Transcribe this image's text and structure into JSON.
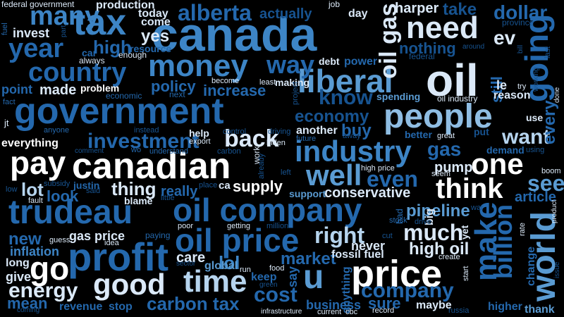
{
  "cloud": {
    "palette": [
      "#ffffff",
      "#dbe9f8",
      "#b6d4ee",
      "#8fbde3",
      "#5a9bd2",
      "#3d85c6",
      "#2468ad",
      "#175390",
      "#0f3e73",
      "#0b2d57"
    ],
    "words": [
      {
        "text": "canada",
        "color": "#3d85c6"
      },
      {
        "text": "government",
        "color": "#2468ad"
      },
      {
        "text": "canadian",
        "color": "#ffffff"
      },
      {
        "text": "oil company",
        "color": "#2468ad"
      },
      {
        "text": "trudeau",
        "color": "#2468ad"
      },
      {
        "text": "price",
        "color": "#ffffff"
      },
      {
        "text": "oil",
        "color": "#dbe9f8"
      },
      {
        "text": "people",
        "color": "#8fbde3"
      },
      {
        "text": "profit",
        "color": "#2468ad"
      },
      {
        "text": "tax",
        "color": "#3d85c6"
      },
      {
        "text": "oil price",
        "color": "#2468ad"
      },
      {
        "text": "money",
        "color": "#3d85c6"
      },
      {
        "text": "industry",
        "color": "#3d85c6"
      },
      {
        "text": "time",
        "color": "#b6d4ee"
      },
      {
        "text": "good",
        "color": "#dbe9f8"
      },
      {
        "text": "liberal",
        "color": "#5a9bd2"
      },
      {
        "text": "need",
        "color": "#dbe9f8"
      },
      {
        "text": "going",
        "color": "#2468ad"
      },
      {
        "text": "world",
        "color": "#5a9bd2"
      },
      {
        "text": "make",
        "color": "#2468ad"
      },
      {
        "text": "think",
        "color": "#ffffff"
      },
      {
        "text": "one",
        "color": "#ffffff"
      },
      {
        "text": "pay",
        "color": "#ffffff"
      },
      {
        "text": "go",
        "color": "#ffffff"
      },
      {
        "text": "u",
        "color": "#5a9bd2"
      },
      {
        "text": "well",
        "color": "#5a9bd2"
      },
      {
        "text": "year",
        "color": "#2468ad"
      },
      {
        "text": "country",
        "color": "#2468ad"
      },
      {
        "text": "back",
        "color": "#dbe9f8"
      },
      {
        "text": "billion",
        "color": "#2468ad"
      },
      {
        "text": "alberta",
        "color": "#2468ad"
      },
      {
        "text": "many",
        "color": "#3d85c6"
      },
      {
        "text": "investment",
        "color": "#2468ad"
      },
      {
        "text": "way",
        "color": "#2468ad"
      },
      {
        "text": "oil gas",
        "color": "#dbe9f8"
      },
      {
        "text": "know",
        "color": "#175390"
      },
      {
        "text": "carbon tax",
        "color": "#2468ad"
      },
      {
        "text": "energy",
        "color": "#dbe9f8"
      },
      {
        "text": "company",
        "color": "#2468ad"
      },
      {
        "text": "cost",
        "color": "#2468ad"
      },
      {
        "text": "much",
        "color": "#dbe9f8"
      },
      {
        "text": "right",
        "color": "#b6d4ee"
      },
      {
        "text": "even",
        "color": "#2468ad"
      },
      {
        "text": "want",
        "color": "#b6d4ee"
      },
      {
        "text": "see",
        "color": "#5a9bd2"
      },
      {
        "text": "dollar",
        "color": "#2468ad"
      },
      {
        "text": "take",
        "color": "#175390"
      },
      {
        "text": "ev",
        "color": "#dbe9f8"
      },
      {
        "text": "every",
        "color": "#2468ad"
      },
      {
        "text": "gas",
        "color": "#2468ad"
      },
      {
        "text": "lot",
        "color": "#b6d4ee"
      },
      {
        "text": "thing",
        "color": "#dbe9f8"
      },
      {
        "text": "supply",
        "color": "#ffffff"
      },
      {
        "text": "lol",
        "color": "#3d85c6"
      },
      {
        "text": "market",
        "color": "#2468ad"
      },
      {
        "text": "high oil",
        "color": "#dbe9f8"
      },
      {
        "text": "pipeline",
        "color": "#5a9bd2"
      },
      {
        "text": "conservative",
        "color": "#dbe9f8"
      },
      {
        "text": "economy",
        "color": "#175390"
      },
      {
        "text": "buy",
        "color": "#2468ad"
      },
      {
        "text": "policy",
        "color": "#2468ad"
      },
      {
        "text": "increase",
        "color": "#2468ad"
      },
      {
        "text": "new",
        "color": "#2468ad"
      },
      {
        "text": "look",
        "color": "#2468ad"
      },
      {
        "text": "really",
        "color": "#2468ad"
      },
      {
        "text": "high",
        "color": "#2468ad"
      },
      {
        "text": "still",
        "color": "#2468ad"
      },
      {
        "text": "business",
        "color": "#2468ad"
      },
      {
        "text": "stop",
        "color": "#2468ad"
      },
      {
        "text": "sure",
        "color": "#2468ad"
      },
      {
        "text": "yes",
        "color": "#dbe9f8"
      },
      {
        "text": "invest",
        "color": "#dbe9f8"
      },
      {
        "text": "made",
        "color": "#dbe9f8"
      },
      {
        "text": "point",
        "color": "#2468ad"
      },
      {
        "text": "actually",
        "color": "#175390"
      },
      {
        "text": "nothing",
        "color": "#175390"
      },
      {
        "text": "harper",
        "color": "#dbe9f8"
      },
      {
        "text": "everything",
        "color": "#ffffff"
      },
      {
        "text": "gas price",
        "color": "#dbe9f8"
      },
      {
        "text": "inflation",
        "color": "#3d85c6"
      },
      {
        "text": "article",
        "color": "#2468ad"
      },
      {
        "text": "pump",
        "color": "#dbe9f8"
      },
      {
        "text": "give",
        "color": "#dbe9f8"
      },
      {
        "text": "mean",
        "color": "#2468ad"
      },
      {
        "text": "revenue",
        "color": "#2468ad"
      },
      {
        "text": "care",
        "color": "#dbe9f8"
      },
      {
        "text": "global",
        "color": "#5a9bd2"
      },
      {
        "text": "fossil fuel",
        "color": "#dbe9f8"
      },
      {
        "text": "never",
        "color": "#dbe9f8"
      },
      {
        "text": "maybe",
        "color": "#dbe9f8"
      },
      {
        "text": "higher",
        "color": "#2468ad"
      },
      {
        "text": "thank",
        "color": "#5a9bd2"
      },
      {
        "text": "change",
        "color": "#2468ad"
      },
      {
        "text": "anything",
        "color": "#2468ad"
      },
      {
        "text": "say",
        "color": "#2468ad"
      },
      {
        "text": "keep",
        "color": "#2468ad"
      },
      {
        "text": "long",
        "color": "#dbe9f8"
      },
      {
        "text": "production",
        "color": "#dbe9f8"
      },
      {
        "text": "today",
        "color": "#dbe9f8"
      },
      {
        "text": "come",
        "color": "#dbe9f8"
      },
      {
        "text": "day",
        "color": "#dbe9f8"
      },
      {
        "text": "power",
        "color": "#2468ad"
      },
      {
        "text": "debt",
        "color": "#dbe9f8"
      },
      {
        "text": "le",
        "color": "#dbe9f8"
      },
      {
        "text": "reason",
        "color": "#dbe9f8"
      },
      {
        "text": "spending",
        "color": "#5a9bd2"
      },
      {
        "text": "making",
        "color": "#dbe9f8"
      },
      {
        "text": "problem",
        "color": "#ffffff"
      },
      {
        "text": "resource",
        "color": "#2468ad"
      },
      {
        "text": "car",
        "color": "#2468ad"
      },
      {
        "text": "another",
        "color": "#dbe9f8"
      },
      {
        "text": "better",
        "color": "#2468ad"
      },
      {
        "text": "blame",
        "color": "#dbe9f8"
      },
      {
        "text": "justin",
        "color": "#2468ad"
      },
      {
        "text": "help",
        "color": "#dbe9f8"
      },
      {
        "text": "use",
        "color": "#dbe9f8"
      },
      {
        "text": "demand",
        "color": "#2468ad"
      },
      {
        "text": "put",
        "color": "#175390"
      },
      {
        "text": "big",
        "color": "#dbe9f8"
      },
      {
        "text": "yet",
        "color": "#dbe9f8"
      },
      {
        "text": "federal government",
        "color": "#dbe9f8"
      },
      {
        "text": "job",
        "color": "#dbe9f8"
      },
      {
        "text": "province",
        "color": "#175390"
      },
      {
        "text": "enough",
        "color": "#dbe9f8"
      },
      {
        "text": "always",
        "color": "#dbe9f8"
      },
      {
        "text": "federal",
        "color": "#175390"
      },
      {
        "text": "around",
        "color": "#175390"
      },
      {
        "text": "fuel",
        "color": "#2468ad"
      },
      {
        "text": "part",
        "color": "#175390"
      },
      {
        "text": "bill",
        "color": "#175390"
      },
      {
        "text": "last",
        "color": "#175390"
      },
      {
        "text": "working",
        "color": "#175390"
      },
      {
        "text": "economic",
        "color": "#2468ad"
      },
      {
        "text": "next",
        "color": "#2468ad"
      },
      {
        "text": "become",
        "color": "#dbe9f8"
      },
      {
        "text": "least",
        "color": "#dbe9f8"
      },
      {
        "text": "project",
        "color": "#175390"
      },
      {
        "text": "oil industry",
        "color": "#dbe9f8"
      },
      {
        "text": "try",
        "color": "#dbe9f8"
      },
      {
        "text": "done",
        "color": "#dbe9f8"
      },
      {
        "text": "fact",
        "color": "#2468ad"
      },
      {
        "text": "jt",
        "color": "#dbe9f8"
      },
      {
        "text": "anyone",
        "color": "#2468ad"
      },
      {
        "text": "instead",
        "color": "#175390"
      },
      {
        "text": "control",
        "color": "#175390"
      },
      {
        "text": "driving",
        "color": "#175390"
      },
      {
        "text": "away",
        "color": "#175390"
      },
      {
        "text": "future",
        "color": "#2468ad"
      },
      {
        "text": "great",
        "color": "#dbe9f8"
      },
      {
        "text": "comment",
        "color": "#175390"
      },
      {
        "text": "wo",
        "color": "#2468ad"
      },
      {
        "text": "understand",
        "color": "#2468ad"
      },
      {
        "text": "export",
        "color": "#dbe9f8"
      },
      {
        "text": "carbon",
        "color": "#175390"
      },
      {
        "text": "work",
        "color": "#dbe9f8"
      },
      {
        "text": "biden",
        "color": "#dbe9f8"
      },
      {
        "text": "already",
        "color": "#175390"
      },
      {
        "text": "left",
        "color": "#175390"
      },
      {
        "text": "high price",
        "color": "#dbe9f8"
      },
      {
        "text": "seem",
        "color": "#dbe9f8"
      },
      {
        "text": "using",
        "color": "#175390"
      },
      {
        "text": "boom",
        "color": "#dbe9f8"
      },
      {
        "text": "low",
        "color": "#175390"
      },
      {
        "text": "subsidy",
        "color": "#175390"
      },
      {
        "text": "said",
        "color": "#175390"
      },
      {
        "text": "place",
        "color": "#175390"
      },
      {
        "text": "ca",
        "color": "#dbe9f8"
      },
      {
        "text": "fault",
        "color": "#dbe9f8"
      },
      {
        "text": "little",
        "color": "#175390"
      },
      {
        "text": "support",
        "color": "#5a9bd2"
      },
      {
        "text": "war",
        "color": "#175390"
      },
      {
        "text": "rate",
        "color": "#dbe9f8"
      },
      {
        "text": "product",
        "color": "#dbe9f8"
      },
      {
        "text": "stock",
        "color": "#2468ad"
      },
      {
        "text": "drive",
        "color": "#175390"
      },
      {
        "text": "bad",
        "color": "#2468ad"
      },
      {
        "text": "poor",
        "color": "#dbe9f8"
      },
      {
        "text": "getting",
        "color": "#dbe9f8"
      },
      {
        "text": "million",
        "color": "#175390"
      },
      {
        "text": "paying",
        "color": "#2468ad"
      },
      {
        "text": "guess",
        "color": "#dbe9f8"
      },
      {
        "text": "idea",
        "color": "#dbe9f8"
      },
      {
        "text": "cut",
        "color": "#175390"
      },
      {
        "text": "create",
        "color": "#dbe9f8"
      },
      {
        "text": "start",
        "color": "#dbe9f8"
      },
      {
        "text": "sector",
        "color": "#175390"
      },
      {
        "text": "run",
        "color": "#dbe9f8"
      },
      {
        "text": "food",
        "color": "#dbe9f8"
      },
      {
        "text": "green",
        "color": "#175390"
      },
      {
        "text": "issue",
        "color": "#175390"
      },
      {
        "text": "coming",
        "color": "#175390"
      },
      {
        "text": "infrastructure",
        "color": "#dbe9f8"
      },
      {
        "text": "current",
        "color": "#dbe9f8"
      },
      {
        "text": "cbc",
        "color": "#dbe9f8"
      },
      {
        "text": "record",
        "color": "#dbe9f8"
      },
      {
        "text": "russia",
        "color": "#175390"
      }
    ]
  }
}
